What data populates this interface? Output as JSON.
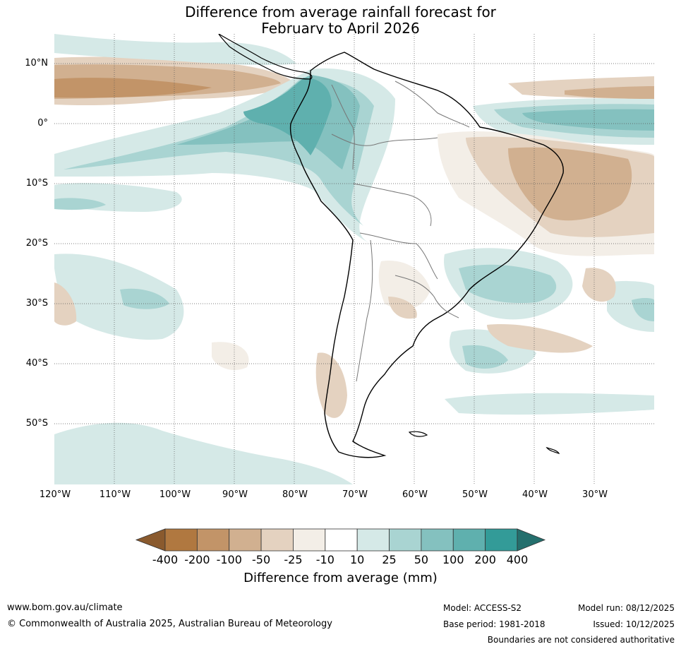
{
  "title": {
    "line1": "Difference from average rainfall forecast for",
    "line2": "February to April 2026"
  },
  "map": {
    "lat_labels": [
      "10°N",
      "0°",
      "10°S",
      "20°S",
      "30°S",
      "40°S",
      "50°S"
    ],
    "lon_labels": [
      "120°W",
      "110°W",
      "100°W",
      "90°W",
      "80°W",
      "70°W",
      "60°W",
      "50°W",
      "40°W",
      "30°W"
    ]
  },
  "colorbar": {
    "ticks": [
      "-400",
      "-200",
      "-100",
      "-50",
      "-25",
      "-10",
      "10",
      "25",
      "50",
      "100",
      "200",
      "400"
    ],
    "colors": [
      "#8a5a2e",
      "#b07840",
      "#c29468",
      "#d1b090",
      "#e4d2c0",
      "#f3eee7",
      "#ffffff",
      "#d5e9e7",
      "#a9d4d2",
      "#84c1bf",
      "#5fb0ae",
      "#339b98",
      "#246f6d"
    ],
    "label": "Difference from average (mm)"
  },
  "footer": {
    "website": "www.bom.gov.au/climate",
    "copyright": "© Commonwealth of Australia 2025, Australian Bureau of Meteorology",
    "model": "Model: ACCESS-S2",
    "base_period": "Base period: 1981-2018",
    "model_run": "Model run: 08/12/2025",
    "issued": "Issued: 10/12/2025",
    "disclaimer": "Boundaries are not considered authoritative"
  }
}
